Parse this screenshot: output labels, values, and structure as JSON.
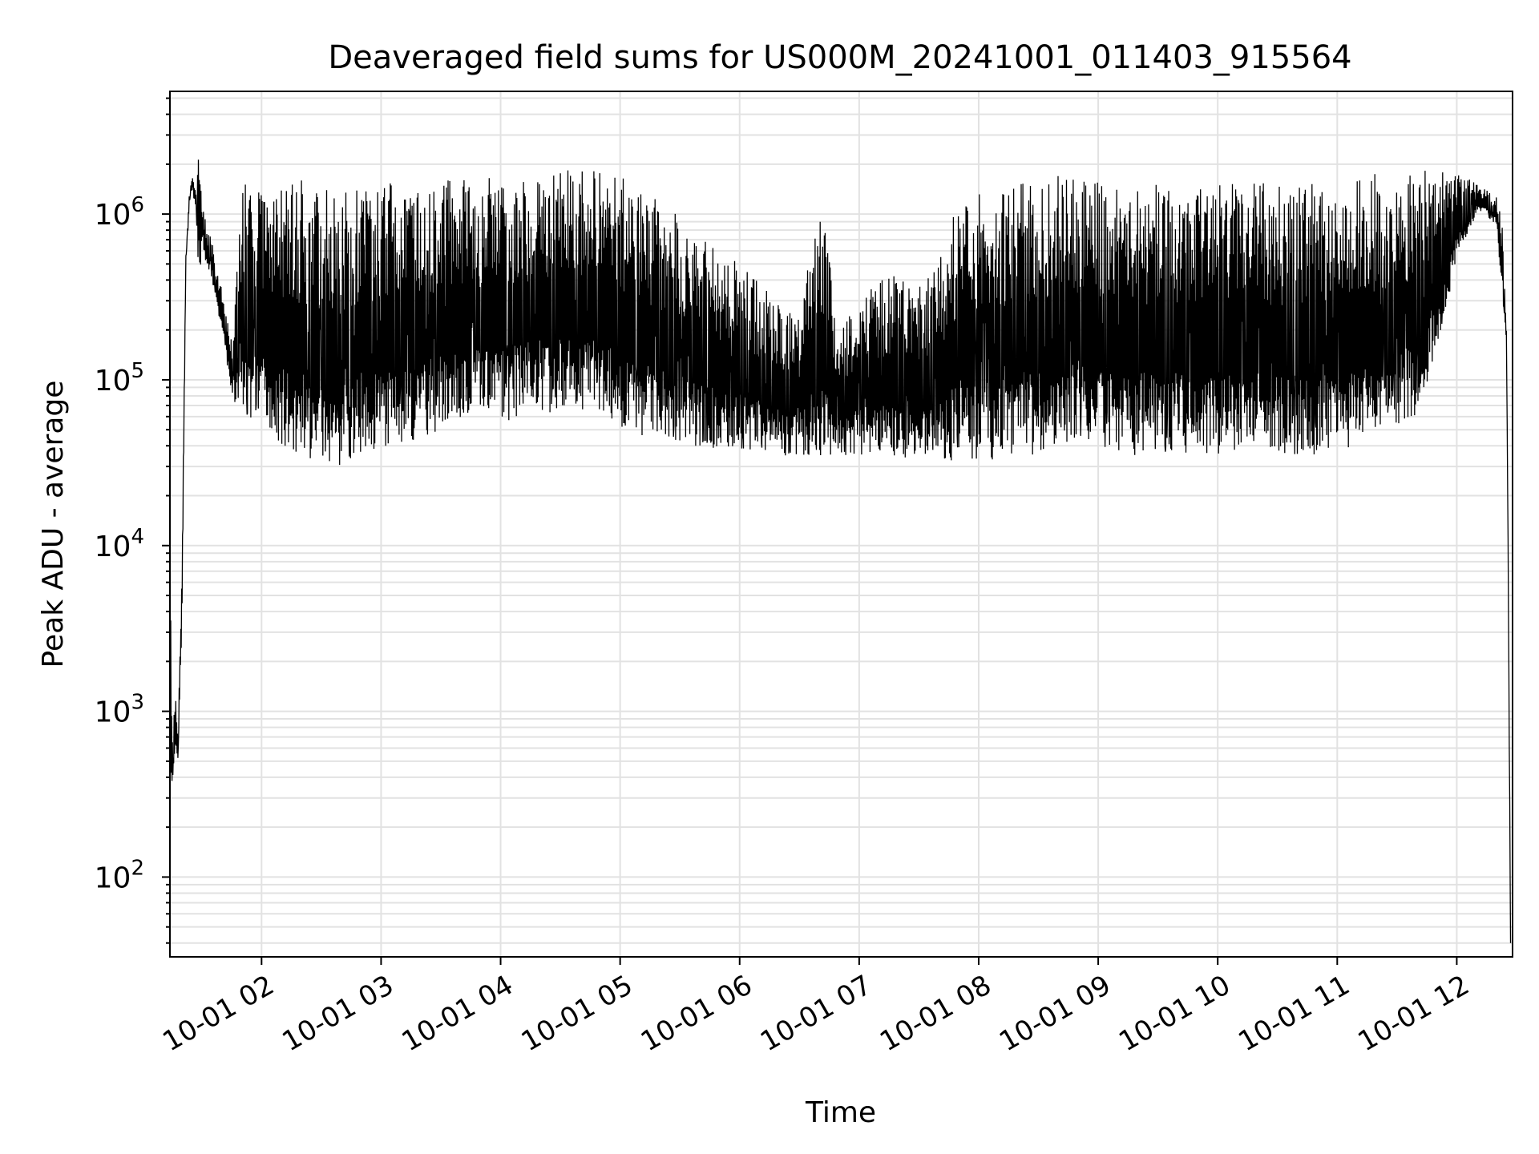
{
  "chart_data": {
    "type": "line",
    "title": "Deaveraged field sums for US000M_20241001_011403_915564",
    "xlabel": "Time",
    "ylabel": "Peak ADU - average",
    "yscale": "log",
    "xlim": [
      "10-01 01:14",
      "10-01 12:28"
    ],
    "ylim": [
      33,
      5500000
    ],
    "grid": true,
    "x_ticks": [
      "10-01 02",
      "10-01 03",
      "10-01 04",
      "10-01 05",
      "10-01 06",
      "10-01 07",
      "10-01 08",
      "10-01 09",
      "10-01 10",
      "10-01 11",
      "10-01 12"
    ],
    "y_ticks": [
      {
        "value": 100,
        "base": "10",
        "exp": "2"
      },
      {
        "value": 1000,
        "base": "10",
        "exp": "3"
      },
      {
        "value": 10000,
        "base": "10",
        "exp": "4"
      },
      {
        "value": 100000,
        "base": "10",
        "exp": "5"
      },
      {
        "value": 1000000,
        "base": "10",
        "exp": "6"
      }
    ],
    "line_color": "#000000",
    "series": [
      {
        "x": [
          "01:14",
          "01:15",
          "01:16",
          "01:17",
          "01:18",
          "01:20",
          "01:22",
          "01:24",
          "01:25",
          "01:27",
          "01:29",
          "01:30",
          "01:32",
          "01:35",
          "01:40",
          "01:45",
          "01:50",
          "01:55",
          "02:00",
          "02:10",
          "02:20",
          "02:30",
          "02:40",
          "02:50",
          "03:00",
          "03:10",
          "03:20",
          "03:30",
          "03:40",
          "03:50",
          "04:00",
          "04:10",
          "04:20",
          "04:30",
          "04:40",
          "04:50",
          "05:00",
          "05:10",
          "05:20",
          "05:30",
          "05:40",
          "05:50",
          "06:00",
          "06:10",
          "06:20",
          "06:30",
          "06:40",
          "06:50",
          "07:00",
          "07:10",
          "07:20",
          "07:30",
          "07:40",
          "07:50",
          "08:00",
          "08:10",
          "08:20",
          "08:30",
          "08:40",
          "08:50",
          "09:00",
          "09:10",
          "09:20",
          "09:30",
          "09:40",
          "09:50",
          "10:00",
          "10:10",
          "10:20",
          "10:30",
          "10:40",
          "10:50",
          "11:00",
          "11:10",
          "11:20",
          "11:30",
          "11:40",
          "11:50",
          "12:00",
          "12:10",
          "12:15",
          "12:20",
          "12:23",
          "12:25",
          "12:26",
          "12:27"
        ],
        "upper": [
          22000,
          600,
          1000,
          1200,
          800,
          8000,
          600000,
          1500000,
          1700000,
          1500000,
          3000000,
          1200000,
          900000,
          700000,
          350000,
          180000,
          1500000,
          1800000,
          1600000,
          1500000,
          1600000,
          1500000,
          1400000,
          1500000,
          1600000,
          1500000,
          1400000,
          1600000,
          1700000,
          1700000,
          1700000,
          1800000,
          1800000,
          1900000,
          1900000,
          1800000,
          1700000,
          1400000,
          1200000,
          1000000,
          800000,
          600000,
          500000,
          400000,
          300000,
          250000,
          1400000,
          200000,
          300000,
          400000,
          450000,
          400000,
          500000,
          1400000,
          1500000,
          1500000,
          1600000,
          1600000,
          1700000,
          1600000,
          1600000,
          1500000,
          1600000,
          1500000,
          1500000,
          1500000,
          1500000,
          1600000,
          1600000,
          1500000,
          1600000,
          1500000,
          1600000,
          1700000,
          1800000,
          1800000,
          1900000,
          2000000,
          1800000,
          1600000,
          1400000,
          1300000,
          900000,
          200000,
          5000,
          40
        ],
        "lower": [
          400,
          330,
          450,
          600,
          480,
          3000,
          500000,
          1200000,
          1400000,
          1100000,
          300000,
          700000,
          500000,
          400000,
          200000,
          80000,
          60000,
          55000,
          50000,
          40000,
          35000,
          32000,
          30000,
          35000,
          38000,
          40000,
          45000,
          50000,
          55000,
          55000,
          55000,
          60000,
          60000,
          65000,
          65000,
          65000,
          50000,
          45000,
          42000,
          40000,
          40000,
          38000,
          38000,
          36000,
          35000,
          35000,
          35000,
          35000,
          35000,
          35000,
          33000,
          33000,
          33000,
          32000,
          32000,
          33000,
          34000,
          35000,
          40000,
          45000,
          40000,
          35000,
          35000,
          35000,
          35000,
          35000,
          35000,
          35000,
          35000,
          35000,
          35000,
          35000,
          38000,
          40000,
          45000,
          50000,
          60000,
          150000,
          500000,
          1000000,
          1000000,
          800000,
          300000,
          150000,
          3000,
          40
        ]
      }
    ]
  }
}
